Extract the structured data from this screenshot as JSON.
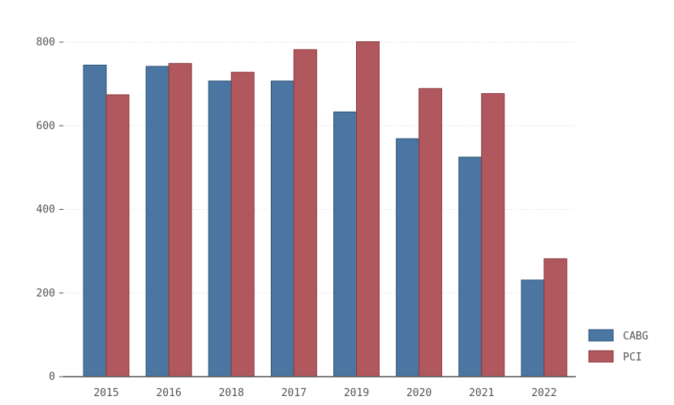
{
  "chart_data": {
    "type": "bar",
    "categories": [
      "2015",
      "2016",
      "2018",
      "2017",
      "2019",
      "2020",
      "2021",
      "2022"
    ],
    "series": [
      {
        "name": "CABG",
        "color": "#4a76a1",
        "values": [
          745,
          742,
          707,
          707,
          633,
          569,
          525,
          231
        ]
      },
      {
        "name": "PCI",
        "color": "#b0585e",
        "values": [
          674,
          749,
          728,
          782,
          801,
          689,
          677,
          282
        ]
      }
    ],
    "title": "",
    "xlabel": "",
    "ylabel": "",
    "ylim": [
      0,
      800
    ],
    "yticks": [
      0,
      200,
      400,
      600,
      800
    ],
    "grid": true,
    "legend_position": "bottom-right"
  }
}
